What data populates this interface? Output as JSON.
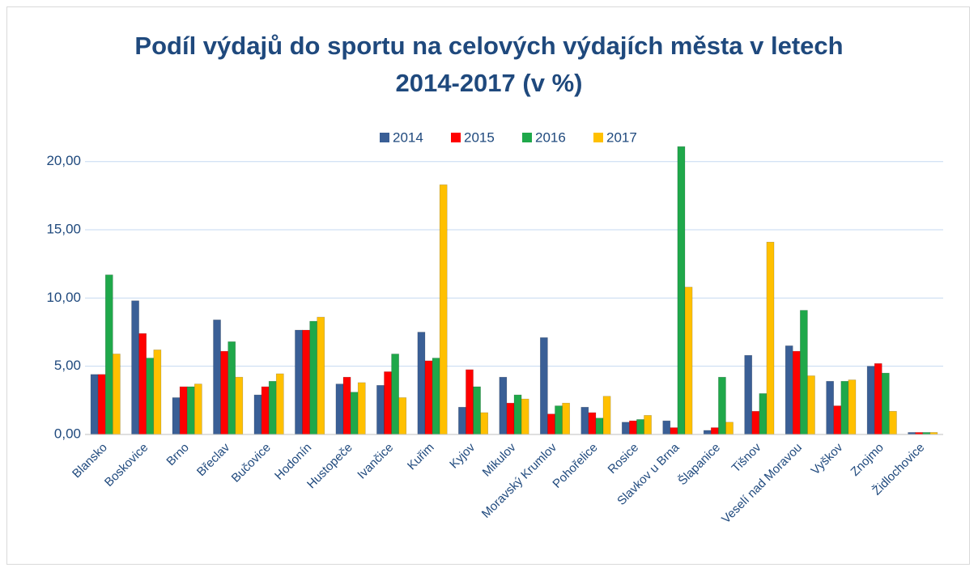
{
  "chart_data": {
    "type": "bar",
    "title": "Podíl výdajů do sportu na celových výdajích města v letech 2014-2017 (v %)",
    "categories": [
      "Blansko",
      "Boskovice",
      "Brno",
      "Břeclav",
      "Bučovice",
      "Hodonín",
      "Hustopeče",
      "Ivančice",
      "Kuřim",
      "Kyjov",
      "Mikulov",
      "Moravský Krumlov",
      "Pohořelice",
      "Rosice",
      "Slavkov u Brna",
      "Šlapanice",
      "Tišnov",
      "Veselí nad Moravou",
      "Vyškov",
      "Znojmo",
      "Židlochovice"
    ],
    "series": [
      {
        "name": "2014",
        "color": "#3a5f96",
        "values": [
          4.4,
          9.8,
          2.7,
          8.4,
          2.9,
          7.65,
          3.7,
          3.6,
          7.5,
          2.0,
          4.2,
          7.1,
          2.0,
          0.9,
          1.0,
          0.3,
          5.8,
          6.5,
          3.9,
          5.0,
          0.15
        ]
      },
      {
        "name": "2015",
        "color": "#ff0000",
        "values": [
          4.4,
          7.4,
          3.5,
          6.1,
          3.5,
          7.65,
          4.2,
          4.6,
          5.4,
          4.75,
          2.3,
          1.5,
          1.6,
          1.0,
          0.5,
          0.5,
          1.7,
          6.1,
          2.1,
          5.2,
          0.15
        ]
      },
      {
        "name": "2016",
        "color": "#1fa84a",
        "values": [
          11.7,
          5.6,
          3.5,
          6.8,
          3.9,
          8.3,
          3.1,
          5.9,
          5.6,
          3.5,
          2.9,
          2.1,
          1.2,
          1.1,
          21.1,
          4.2,
          3.0,
          9.1,
          3.9,
          4.5,
          0.15
        ]
      },
      {
        "name": "2017",
        "color": "#ffc000",
        "values": [
          5.9,
          6.2,
          3.7,
          4.2,
          4.45,
          8.6,
          3.8,
          2.7,
          18.3,
          1.6,
          2.6,
          2.3,
          2.8,
          1.4,
          10.8,
          0.9,
          14.1,
          4.3,
          4.0,
          1.7,
          0.15
        ]
      }
    ],
    "ylim": [
      0,
      22
    ],
    "yticks": [
      {
        "value": 0,
        "label": "0,00"
      },
      {
        "value": 5,
        "label": "5,00"
      },
      {
        "value": 10,
        "label": "10,00"
      },
      {
        "value": 15,
        "label": "15,00"
      },
      {
        "value": 20,
        "label": "20,00"
      }
    ],
    "grid": true,
    "legend": "top"
  }
}
